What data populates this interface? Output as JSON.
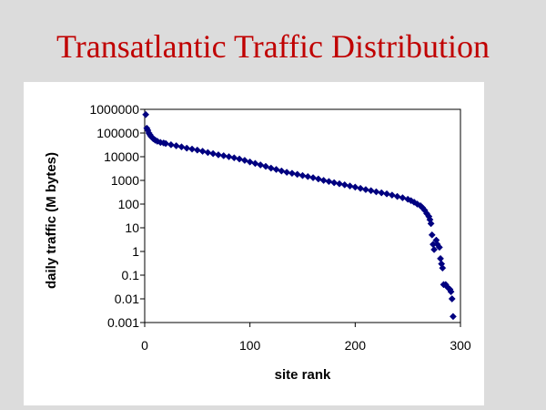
{
  "slide": {
    "title": "Transatlantic Traffic Distribution"
  },
  "chart_data": {
    "type": "scatter",
    "title": "",
    "xlabel": "site rank",
    "ylabel": "daily traffic (M bytes)",
    "xlim": [
      0,
      300
    ],
    "ylim": [
      0.001,
      1000000
    ],
    "yscale": "log",
    "x_ticks": [
      0,
      100,
      200,
      300
    ],
    "y_ticks": [
      "1000000",
      "100000",
      "10000",
      "1000",
      "100",
      "10",
      "1",
      "0.1",
      "0.01",
      "0.001"
    ],
    "marker": "diamond",
    "marker_color": "#000080",
    "grid": false,
    "legend": false,
    "series": [
      {
        "points": [
          [
            1,
            600000
          ],
          [
            2,
            160000
          ],
          [
            3,
            130000
          ],
          [
            4,
            100000
          ],
          [
            5,
            85000
          ],
          [
            6,
            72000
          ],
          [
            7,
            65000
          ],
          [
            8,
            58000
          ],
          [
            10,
            50000
          ],
          [
            12,
            45000
          ],
          [
            15,
            40000
          ],
          [
            18,
            38000
          ],
          [
            20,
            36000
          ],
          [
            25,
            32000
          ],
          [
            30,
            29000
          ],
          [
            35,
            26000
          ],
          [
            40,
            23000
          ],
          [
            45,
            21000
          ],
          [
            50,
            19000
          ],
          [
            55,
            17000
          ],
          [
            60,
            15000
          ],
          [
            65,
            13500
          ],
          [
            70,
            12000
          ],
          [
            75,
            11000
          ],
          [
            80,
            10000
          ],
          [
            85,
            9000
          ],
          [
            90,
            8000
          ],
          [
            95,
            7000
          ],
          [
            100,
            6000
          ],
          [
            105,
            5200
          ],
          [
            110,
            4500
          ],
          [
            115,
            3900
          ],
          [
            120,
            3300
          ],
          [
            125,
            2900
          ],
          [
            130,
            2500
          ],
          [
            135,
            2200
          ],
          [
            140,
            2000
          ],
          [
            145,
            1800
          ],
          [
            150,
            1600
          ],
          [
            155,
            1450
          ],
          [
            160,
            1300
          ],
          [
            165,
            1150
          ],
          [
            170,
            1000
          ],
          [
            175,
            900
          ],
          [
            180,
            800
          ],
          [
            185,
            720
          ],
          [
            190,
            650
          ],
          [
            195,
            580
          ],
          [
            200,
            520
          ],
          [
            205,
            460
          ],
          [
            210,
            410
          ],
          [
            215,
            370
          ],
          [
            220,
            330
          ],
          [
            225,
            300
          ],
          [
            230,
            270
          ],
          [
            235,
            240
          ],
          [
            240,
            210
          ],
          [
            245,
            185
          ],
          [
            250,
            160
          ],
          [
            253,
            140
          ],
          [
            256,
            120
          ],
          [
            259,
            100
          ],
          [
            262,
            85
          ],
          [
            264,
            70
          ],
          [
            266,
            55
          ],
          [
            268,
            40
          ],
          [
            270,
            30
          ],
          [
            271,
            22
          ],
          [
            272,
            15
          ],
          [
            273,
            5
          ],
          [
            274,
            2
          ],
          [
            275,
            1.2
          ],
          [
            277,
            3
          ],
          [
            278,
            2
          ],
          [
            280,
            1.5
          ],
          [
            281,
            0.5
          ],
          [
            282,
            0.3
          ],
          [
            283,
            0.2
          ],
          [
            284,
            0.04
          ],
          [
            286,
            0.04
          ],
          [
            288,
            0.03
          ],
          [
            290,
            0.025
          ],
          [
            291,
            0.02
          ],
          [
            292,
            0.01
          ],
          [
            293,
            0.0018
          ]
        ]
      }
    ]
  }
}
